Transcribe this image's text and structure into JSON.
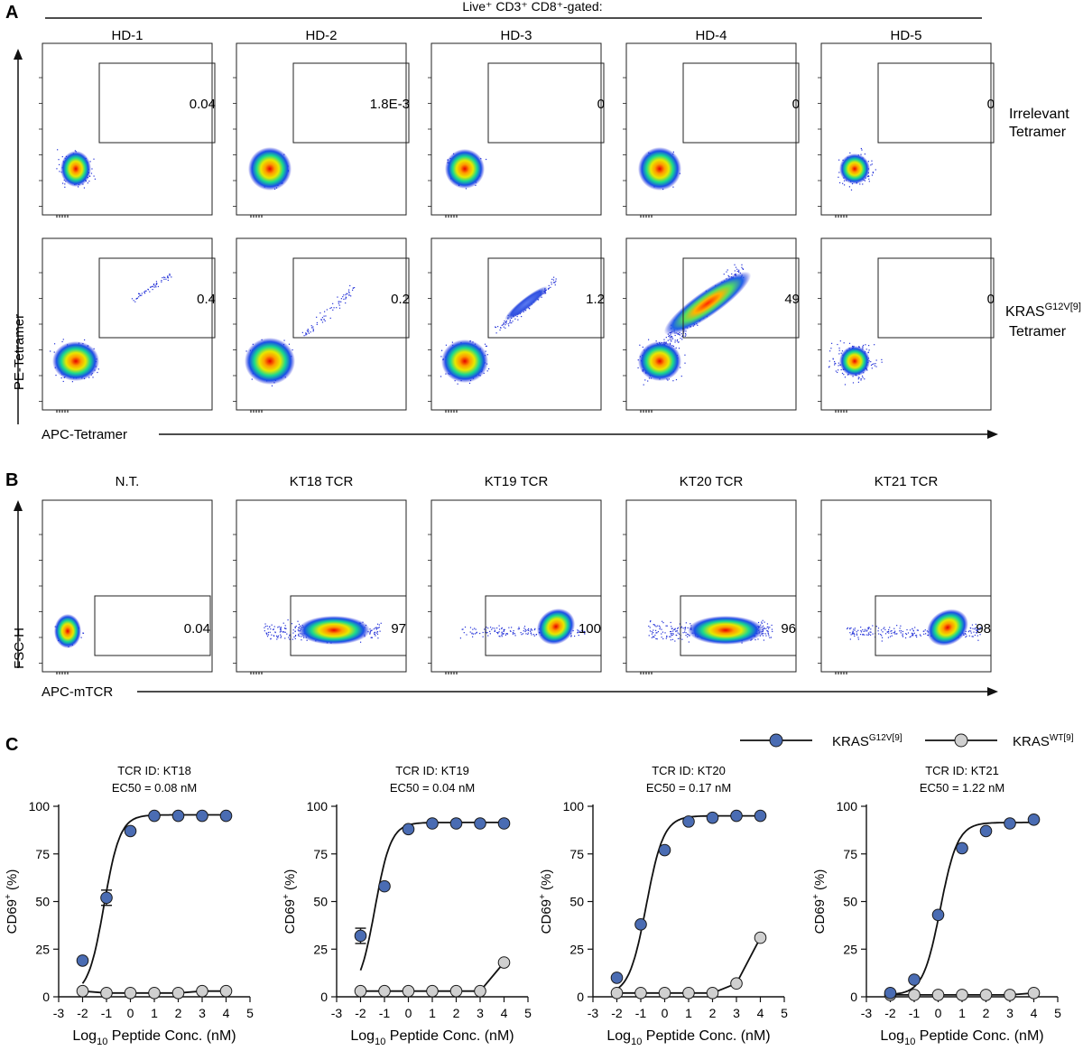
{
  "panel_a": {
    "label": "A",
    "gating_label": "Live⁺ CD3⁺ CD8⁺-gated:",
    "columns": [
      "HD-1",
      "HD-2",
      "HD-3",
      "HD-4",
      "HD-5"
    ],
    "row_labels": [
      [
        "Irrelevant",
        "Tetramer"
      ],
      [
        "KRAS",
        "G12V[9]",
        "Tetramer"
      ]
    ],
    "row_gate_values": [
      [
        "0.04",
        "1.8E-3",
        "0",
        "0",
        "0"
      ],
      [
        "0.4",
        "0.2",
        "1.2",
        "49",
        "0"
      ]
    ],
    "y_axis_label": "PE-Tetramer",
    "x_axis_label": "APC-Tetramer"
  },
  "panel_b": {
    "label": "B",
    "columns": [
      "N.T.",
      "KT18 TCR",
      "KT19 TCR",
      "KT20 TCR",
      "KT21 TCR"
    ],
    "gate_values": [
      "0.04",
      "97",
      "100",
      "96",
      "98"
    ],
    "y_axis_label": "FSC-H",
    "x_axis_label": "APC-mTCR"
  },
  "panel_c": {
    "label": "C",
    "legend": [
      {
        "base": "KRAS",
        "sup": "G12V[9]",
        "color": "#4a6cb3"
      },
      {
        "base": "KRAS",
        "sup": "WT[9]",
        "color": "#d0d0d0"
      }
    ],
    "y_label_base": "CD69",
    "y_label_sup": "+",
    "y_label_tail": " (%)",
    "x_label_pre": "Log",
    "x_label_sub": "10",
    "x_label_post": " Peptide Conc. (nM)"
  },
  "chart_data": [
    {
      "type": "scatter",
      "title": "TCR ID: KT18",
      "subtitle": "EC50 = 0.08 nM",
      "xlabel": "Log10 Peptide Conc. (nM)",
      "ylabel": "CD69+ (%)",
      "xlim": [
        -3,
        5
      ],
      "ylim": [
        0,
        100
      ],
      "xticks": [
        -3,
        -2,
        -1,
        0,
        1,
        2,
        3,
        4,
        5
      ],
      "yticks": [
        0,
        25,
        50,
        75,
        100
      ],
      "series": [
        {
          "name": "KRASG12V[9]",
          "color": "#4a6cb3",
          "x": [
            -2,
            -1,
            0,
            1,
            2,
            3,
            4
          ],
          "values": [
            19,
            52,
            87,
            95,
            95,
            95,
            95
          ],
          "error": [
            0,
            4,
            0,
            0,
            0,
            0,
            0
          ],
          "fit": {
            "bottom": 1,
            "top": 95.5,
            "logec50": -1.1,
            "hill": 1.3
          }
        },
        {
          "name": "KRASWT[9]",
          "color": "#d0d0d0",
          "x": [
            -2,
            -1,
            0,
            1,
            2,
            3,
            4
          ],
          "values": [
            3,
            2,
            2,
            2,
            2,
            3,
            3
          ]
        }
      ]
    },
    {
      "type": "scatter",
      "title": "TCR ID: KT19",
      "subtitle": "EC50 = 0.04 nM",
      "xlabel": "Log10 Peptide Conc. (nM)",
      "ylabel": "CD69+ (%)",
      "xlim": [
        -3,
        5
      ],
      "ylim": [
        0,
        100
      ],
      "xticks": [
        -3,
        -2,
        -1,
        0,
        1,
        2,
        3,
        4,
        5
      ],
      "yticks": [
        0,
        25,
        50,
        75,
        100
      ],
      "series": [
        {
          "name": "KRASG12V[9]",
          "color": "#4a6cb3",
          "x": [
            -2,
            -1,
            0,
            1,
            2,
            3,
            4
          ],
          "values": [
            32,
            58,
            88,
            91,
            91,
            91,
            91
          ],
          "error": [
            4,
            0,
            0,
            0,
            0,
            0,
            0
          ],
          "fit": {
            "bottom": 1,
            "top": 91.5,
            "logec50": -1.4,
            "hill": 1.3
          }
        },
        {
          "name": "KRASWT[9]",
          "color": "#d0d0d0",
          "x": [
            -2,
            -1,
            0,
            1,
            2,
            3,
            4
          ],
          "values": [
            3,
            3,
            3,
            3,
            3,
            3,
            18
          ]
        }
      ]
    },
    {
      "type": "scatter",
      "title": "TCR ID: KT20",
      "subtitle": "EC50 = 0.17 nM",
      "xlabel": "Log10 Peptide Conc. (nM)",
      "ylabel": "CD69+ (%)",
      "xlim": [
        -3,
        5
      ],
      "ylim": [
        0,
        100
      ],
      "xticks": [
        -3,
        -2,
        -1,
        0,
        1,
        2,
        3,
        4,
        5
      ],
      "yticks": [
        0,
        25,
        50,
        75,
        100
      ],
      "series": [
        {
          "name": "KRASG12V[9]",
          "color": "#4a6cb3",
          "x": [
            -2,
            -1,
            0,
            1,
            2,
            3,
            4
          ],
          "values": [
            10,
            38,
            77,
            92,
            94,
            95,
            95
          ],
          "error": [
            0,
            0,
            0,
            0,
            0,
            0,
            0
          ],
          "fit": {
            "bottom": 1,
            "top": 95,
            "logec50": -0.77,
            "hill": 1.2
          }
        },
        {
          "name": "KRASWT[9]",
          "color": "#d0d0d0",
          "x": [
            -2,
            -1,
            0,
            1,
            2,
            3,
            4
          ],
          "values": [
            2,
            2,
            2,
            2,
            2,
            7,
            31
          ]
        }
      ]
    },
    {
      "type": "scatter",
      "title": "TCR ID: KT21",
      "subtitle": "EC50 = 1.22 nM",
      "xlabel": "Log10 Peptide Conc. (nM)",
      "ylabel": "CD69+ (%)",
      "xlim": [
        -3,
        5
      ],
      "ylim": [
        0,
        100
      ],
      "xticks": [
        -3,
        -2,
        -1,
        0,
        1,
        2,
        3,
        4,
        5
      ],
      "yticks": [
        0,
        25,
        50,
        75,
        100
      ],
      "series": [
        {
          "name": "KRASG12V[9]",
          "color": "#4a6cb3",
          "x": [
            -2,
            -1,
            0,
            1,
            2,
            3,
            4
          ],
          "values": [
            2,
            9,
            43,
            78,
            87,
            91,
            93
          ],
          "error": [
            0,
            0,
            0,
            0,
            0,
            0,
            0
          ],
          "fit": {
            "bottom": 1,
            "top": 91.5,
            "logec50": 0.09,
            "hill": 1.2
          }
        },
        {
          "name": "KRASWT[9]",
          "color": "#d0d0d0",
          "x": [
            -2,
            -1,
            0,
            1,
            2,
            3,
            4
          ],
          "values": [
            1,
            1,
            1,
            1,
            1,
            1,
            2
          ]
        }
      ]
    }
  ]
}
